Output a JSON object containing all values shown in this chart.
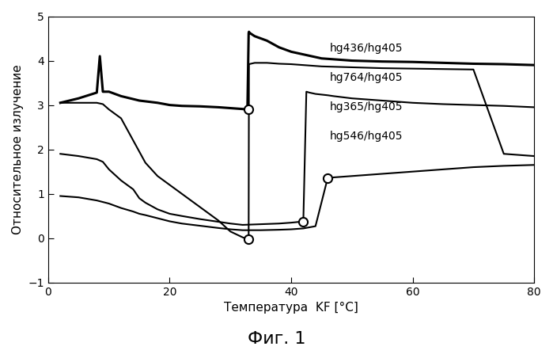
{
  "title": "Фиг. 1",
  "xlabel": "Температура  KF [°C]",
  "ylabel": "Относительное излучение",
  "xlim": [
    0,
    80
  ],
  "ylim": [
    -1,
    5
  ],
  "xticks": [
    0,
    20,
    40,
    60,
    80
  ],
  "yticks": [
    -1,
    0,
    1,
    2,
    3,
    4,
    5
  ],
  "legend_labels": [
    "hg436/hg405",
    "hg764/hg405",
    "hg365/hg405",
    "hg546/hg405"
  ],
  "curves": {
    "hg436_hg405": {
      "x": [
        2,
        5,
        8,
        8.5,
        9,
        10,
        12,
        15,
        18,
        20,
        22,
        25,
        28,
        30,
        32,
        32.8,
        33.0,
        33.05,
        33.1,
        34,
        36,
        38,
        40,
        45,
        50,
        55,
        60,
        65,
        70,
        75,
        80
      ],
      "y": [
        3.05,
        3.15,
        3.28,
        4.1,
        3.3,
        3.3,
        3.2,
        3.1,
        3.05,
        3.0,
        2.98,
        2.97,
        2.95,
        2.93,
        2.91,
        2.9,
        4.62,
        4.65,
        4.63,
        4.55,
        4.45,
        4.3,
        4.2,
        4.05,
        4.0,
        3.98,
        3.97,
        3.95,
        3.93,
        3.92,
        3.9
      ],
      "circle_markers": [
        [
          33.0,
          2.9
        ]
      ],
      "lw": 2.2
    },
    "hg764_hg405": {
      "x": [
        2,
        5,
        8,
        9,
        10,
        12,
        14,
        15,
        16,
        18,
        20,
        22,
        25,
        28,
        30,
        32,
        32.8,
        33.0,
        33.05,
        34,
        36,
        38,
        40,
        42,
        44,
        45,
        50,
        55,
        60,
        65,
        70,
        75,
        80
      ],
      "y": [
        3.05,
        3.05,
        3.05,
        3.02,
        2.9,
        2.7,
        2.2,
        1.95,
        1.7,
        1.4,
        1.2,
        1.0,
        0.7,
        0.4,
        0.15,
        0.02,
        -0.02,
        -0.02,
        3.92,
        3.95,
        3.95,
        3.93,
        3.92,
        3.9,
        3.88,
        3.87,
        3.85,
        3.83,
        3.82,
        3.81,
        3.8,
        1.9,
        1.85
      ],
      "circle_markers": [
        [
          33.0,
          -0.02
        ]
      ],
      "lw": 1.5
    },
    "hg365_hg405": {
      "x": [
        2,
        5,
        8,
        9,
        10,
        12,
        14,
        15,
        16,
        18,
        20,
        22,
        25,
        28,
        30,
        32,
        38,
        40,
        41.5,
        42,
        42.5,
        43,
        44,
        46,
        47,
        50,
        55,
        60,
        65,
        70,
        75,
        80
      ],
      "y": [
        1.9,
        1.85,
        1.78,
        1.72,
        1.55,
        1.3,
        1.1,
        0.9,
        0.8,
        0.65,
        0.55,
        0.5,
        0.43,
        0.37,
        0.33,
        0.3,
        0.33,
        0.35,
        0.37,
        0.38,
        3.3,
        3.28,
        3.25,
        3.22,
        3.2,
        3.15,
        3.1,
        3.05,
        3.02,
        3.0,
        2.98,
        2.95
      ],
      "circle_markers": [
        [
          42.0,
          0.37
        ]
      ],
      "lw": 1.5
    },
    "hg546_hg405": {
      "x": [
        2,
        5,
        8,
        10,
        12,
        14,
        15,
        16,
        18,
        20,
        22,
        25,
        28,
        30,
        32,
        35,
        38,
        40,
        42,
        44,
        46,
        47,
        48,
        50,
        55,
        60,
        65,
        70,
        75,
        80
      ],
      "y": [
        0.95,
        0.92,
        0.85,
        0.78,
        0.68,
        0.6,
        0.55,
        0.52,
        0.45,
        0.38,
        0.33,
        0.28,
        0.23,
        0.2,
        0.18,
        0.18,
        0.19,
        0.2,
        0.22,
        0.27,
        1.35,
        1.37,
        1.38,
        1.4,
        1.45,
        1.5,
        1.55,
        1.6,
        1.63,
        1.65
      ],
      "circle_markers": [
        [
          46.0,
          1.35
        ]
      ],
      "lw": 1.5
    }
  },
  "line_color": "#000000",
  "bg_color": "#ffffff",
  "font_family": "DejaVu Sans"
}
